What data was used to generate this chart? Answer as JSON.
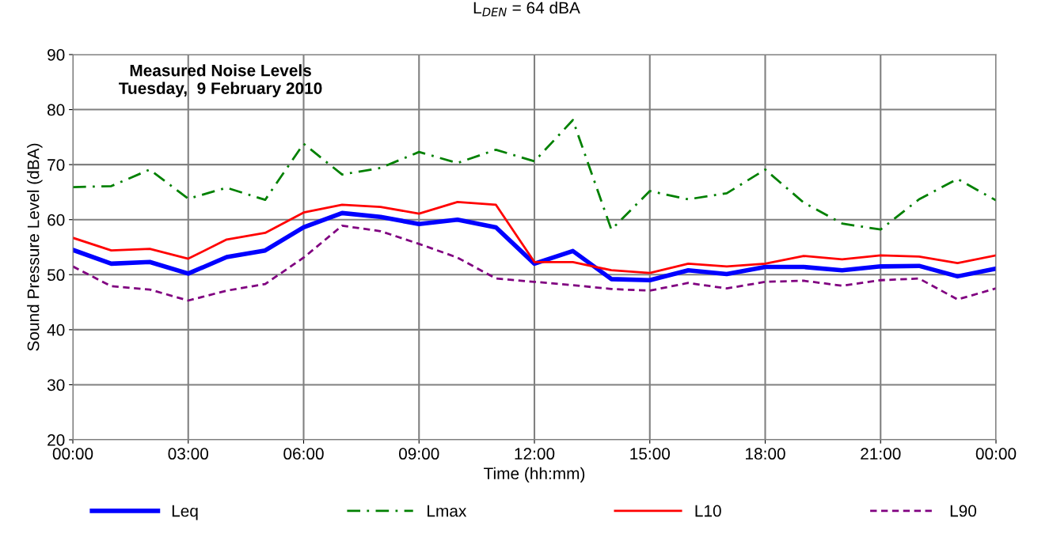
{
  "chart_data": {
    "type": "line",
    "title": "Measured Noise Levels\nTuesday,  9 February 2010",
    "xlabel": "Time (hh:mm)",
    "ylabel": "Sound Pressure Level (dBA)",
    "annotations": [
      "L$_{DEN}$ = 64 dBA"
    ],
    "x": [
      0,
      1,
      2,
      3,
      4,
      5,
      6,
      7,
      8,
      9,
      10,
      11,
      12,
      13,
      14,
      15,
      16,
      17,
      18,
      19,
      20,
      21,
      22,
      23,
      24
    ],
    "series": [
      {
        "name": "Leq",
        "color": "#0000ff",
        "line_style": "solid",
        "values": [
          54.5,
          52,
          52.3,
          50.2,
          53.2,
          54.4,
          58.6,
          61.2,
          60.5,
          59.2,
          60,
          58.6,
          52,
          54.3,
          49.2,
          49,
          50.8,
          50.1,
          51.4,
          51.4,
          50.8,
          51.5,
          51.6,
          49.7,
          51.1
        ]
      },
      {
        "name": "Lmax",
        "color": "#008000",
        "line_style": "dashdot",
        "values": [
          65.9,
          66.1,
          69.1,
          63.8,
          65.8,
          63.6,
          73.8,
          68.2,
          69.4,
          72.3,
          70.3,
          72.7,
          70.6,
          78.1,
          58.2,
          65.2,
          63.7,
          64.8,
          69.1,
          63.1,
          59.3,
          58.2,
          63.7,
          67.4,
          63.5
        ]
      },
      {
        "name": "L10",
        "color": "#ff0000",
        "line_style": "solid",
        "values": [
          56.7,
          54.4,
          54.7,
          52.9,
          56.4,
          57.6,
          61.3,
          62.7,
          62.3,
          61.1,
          63.2,
          62.7,
          52.3,
          52.3,
          50.8,
          50.3,
          52,
          51.5,
          52,
          53.4,
          52.8,
          53.5,
          53.3,
          52.1,
          53.5
        ]
      },
      {
        "name": "L90",
        "color": "#800080",
        "line_style": "dashed",
        "values": [
          51.5,
          47.9,
          47.3,
          45.3,
          47.1,
          48.3,
          53.1,
          58.9,
          57.9,
          55.6,
          53.1,
          49.3,
          48.7,
          48.1,
          47.4,
          47.1,
          48.5,
          47.5,
          48.7,
          48.9,
          48,
          49,
          49.3,
          45.5,
          47.5
        ]
      }
    ],
    "xlim": [
      0,
      24
    ],
    "xticks": [
      {
        "value": 0,
        "label": "00:00"
      },
      {
        "value": 3,
        "label": "03:00"
      },
      {
        "value": 6,
        "label": "06:00"
      },
      {
        "value": 9,
        "label": "09:00"
      },
      {
        "value": 12,
        "label": "12:00"
      },
      {
        "value": 15,
        "label": "15:00"
      },
      {
        "value": 18,
        "label": "18:00"
      },
      {
        "value": 21,
        "label": "21:00"
      },
      {
        "value": 24,
        "label": "00:00"
      }
    ],
    "ylim": [
      20,
      90
    ],
    "yticks": [
      20,
      30,
      40,
      50,
      60,
      70,
      80,
      90
    ],
    "grid": true,
    "legend": "bottom",
    "marker": "none"
  }
}
